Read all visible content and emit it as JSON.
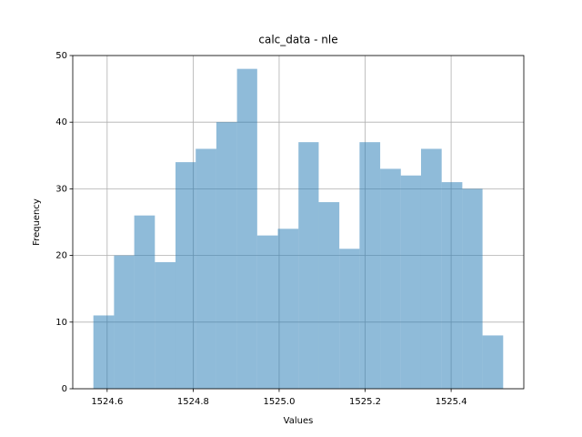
{
  "chart_data": {
    "type": "histogram",
    "title": "calc_data - nle",
    "x_label": "Values",
    "y_label": "Frequency",
    "bins": [
      1524.568,
      1524.616,
      1524.663,
      1524.711,
      1524.759,
      1524.806,
      1524.854,
      1524.902,
      1524.949,
      1524.997,
      1525.045,
      1525.092,
      1525.14,
      1525.187,
      1525.235,
      1525.283,
      1525.33,
      1525.378,
      1525.426,
      1525.473,
      1525.521
    ],
    "counts": [
      11,
      20,
      26,
      19,
      34,
      36,
      40,
      48,
      23,
      24,
      37,
      28,
      21,
      37,
      33,
      32,
      36,
      31,
      30,
      8
    ],
    "color": "#1f77b4",
    "opacity": 0.5,
    "xlim": [
      1524.52,
      1525.569
    ],
    "xticks": [
      1524.6,
      1524.8,
      {
        "value": 1525,
        "label": "1525.0"
      },
      1525.2,
      1525.4
    ],
    "ylim": [
      0,
      50
    ],
    "yticks": [
      0,
      10,
      20,
      30,
      40,
      50
    ],
    "grid": true
  }
}
